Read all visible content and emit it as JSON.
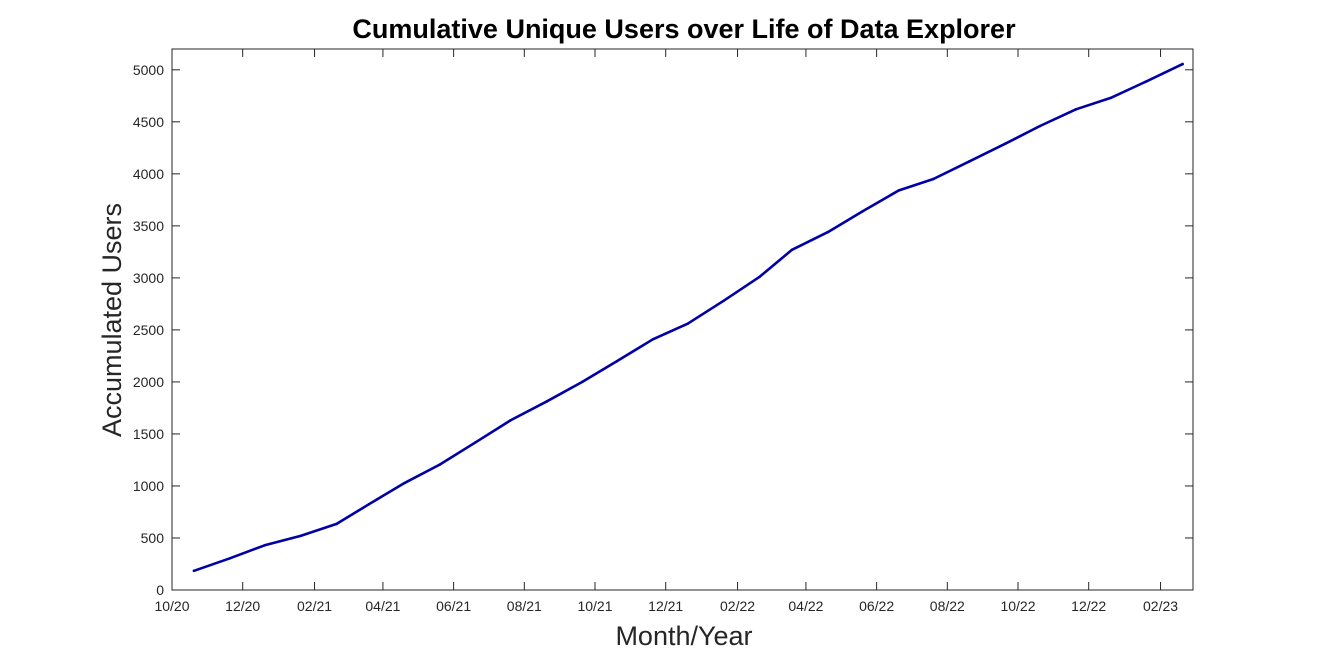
{
  "chart_data": {
    "type": "line",
    "title": "Cumulative Unique Users over Life of Data Explorer",
    "xlabel": "Month/Year",
    "ylabel": "Accumulated Users",
    "xlim": [
      "2020-10-01",
      "2023-03-01"
    ],
    "ylim": [
      0,
      5200
    ],
    "x_ticks": [
      "2020-10-01",
      "2020-12-01",
      "2021-02-01",
      "2021-04-01",
      "2021-06-01",
      "2021-08-01",
      "2021-10-01",
      "2021-12-01",
      "2022-02-01",
      "2022-04-01",
      "2022-06-01",
      "2022-08-01",
      "2022-10-01",
      "2022-12-01",
      "2023-02-01"
    ],
    "x_tick_labels": [
      "10/20",
      "12/20",
      "02/21",
      "04/21",
      "06/21",
      "08/21",
      "10/21",
      "12/21",
      "02/22",
      "04/22",
      "06/22",
      "08/22",
      "10/22",
      "12/22",
      "02/23"
    ],
    "y_ticks": [
      0,
      500,
      1000,
      1500,
      2000,
      2500,
      3000,
      3500,
      4000,
      4500,
      5000
    ],
    "y_tick_labels": [
      "0",
      "500",
      "1000",
      "1500",
      "2000",
      "2500",
      "3000",
      "3500",
      "4000",
      "4500",
      "5000"
    ],
    "grid": false,
    "series": [
      {
        "color": "#0000a8",
        "x": [
          "2020-10-20",
          "2020-11-20",
          "2020-12-20",
          "2021-01-20",
          "2021-02-20",
          "2021-03-20",
          "2021-04-20",
          "2021-05-20",
          "2021-06-20",
          "2021-07-20",
          "2021-08-20",
          "2021-09-20",
          "2021-10-20",
          "2021-11-20",
          "2021-12-20",
          "2022-01-20",
          "2022-02-20",
          "2022-03-20",
          "2022-04-20",
          "2022-05-20",
          "2022-06-20",
          "2022-07-20",
          "2022-08-20",
          "2022-09-20",
          "2022-10-20",
          "2022-11-20",
          "2022-12-20",
          "2023-01-20",
          "2023-02-20"
        ],
        "values": [
          185,
          305,
          430,
          520,
          635,
          825,
          1030,
          1205,
          1420,
          1630,
          1810,
          2000,
          2200,
          2410,
          2560,
          2780,
          3010,
          3270,
          3440,
          3640,
          3840,
          3950,
          4120,
          4290,
          4460,
          4620,
          4730,
          4890,
          5055
        ]
      }
    ]
  }
}
